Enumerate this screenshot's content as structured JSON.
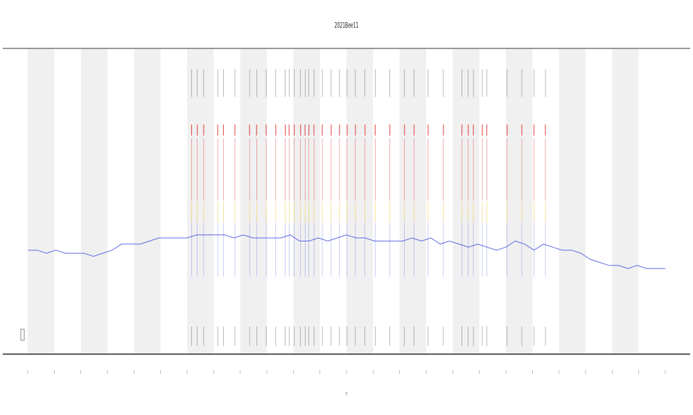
{
  "chart_data": {
    "type": "line",
    "title": "2021Bee11",
    "xlabel": "t",
    "ylabel": "",
    "x_ticks_count": 24,
    "shaded_bands": [
      0,
      2,
      4,
      6,
      8,
      10,
      12,
      14,
      16,
      18,
      20,
      22
    ],
    "series": [
      {
        "color": "#3344dd",
        "role": "activity-trace",
        "values": [
          0.34,
          0.34,
          0.33,
          0.34,
          0.33,
          0.33,
          0.33,
          0.32,
          0.33,
          0.34,
          0.36,
          0.36,
          0.36,
          0.37,
          0.38,
          0.38,
          0.38,
          0.38,
          0.39,
          0.39,
          0.39,
          0.39,
          0.38,
          0.39,
          0.38,
          0.38,
          0.38,
          0.38,
          0.39,
          0.37,
          0.37,
          0.38,
          0.37,
          0.38,
          0.39,
          0.38,
          0.38,
          0.37,
          0.37,
          0.37,
          0.37,
          0.38,
          0.37,
          0.38,
          0.36,
          0.37,
          0.36,
          0.35,
          0.36,
          0.35,
          0.34,
          0.35,
          0.37,
          0.36,
          0.34,
          0.36,
          0.35,
          0.34,
          0.34,
          0.33,
          0.31,
          0.3,
          0.29,
          0.29,
          0.28,
          0.29,
          0.28,
          0.28,
          0.28
        ]
      }
    ],
    "event_marks": {
      "colors": [
        "#dd2222",
        "#e8c020",
        "#444444"
      ],
      "x_positions": [
        0.257,
        0.266,
        0.276,
        0.298,
        0.307,
        0.325,
        0.348,
        0.359,
        0.374,
        0.389,
        0.404,
        0.41,
        0.418,
        0.428,
        0.435,
        0.441,
        0.449,
        0.462,
        0.476,
        0.489,
        0.501,
        0.514,
        0.529,
        0.545,
        0.568,
        0.591,
        0.606,
        0.628,
        0.652,
        0.681,
        0.691,
        0.699,
        0.713,
        0.72,
        0.752,
        0.775,
        0.794,
        0.812
      ]
    }
  }
}
